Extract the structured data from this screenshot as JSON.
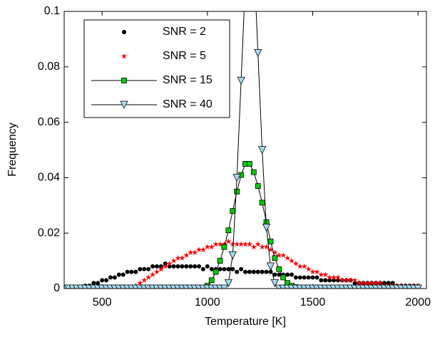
{
  "chart_data": {
    "type": "line",
    "xlabel": "Temperature [K]",
    "ylabel": "Frequency",
    "xlim": [
      320,
      2040
    ],
    "ylim": [
      0,
      0.1
    ],
    "xticks": [
      500,
      1000,
      1500,
      2000
    ],
    "yticks": [
      0,
      0.02,
      0.04,
      0.06,
      0.08,
      0.1
    ],
    "legend": "upper left",
    "x": [
      320,
      340,
      360,
      380,
      400,
      420,
      440,
      460,
      480,
      500,
      520,
      540,
      560,
      580,
      600,
      620,
      640,
      660,
      680,
      700,
      720,
      740,
      760,
      780,
      800,
      820,
      840,
      860,
      880,
      900,
      920,
      940,
      960,
      980,
      1000,
      1020,
      1040,
      1060,
      1080,
      1100,
      1120,
      1140,
      1160,
      1180,
      1200,
      1220,
      1240,
      1260,
      1280,
      1300,
      1320,
      1340,
      1360,
      1380,
      1400,
      1420,
      1440,
      1460,
      1480,
      1500,
      1520,
      1540,
      1560,
      1580,
      1600,
      1620,
      1640,
      1660,
      1680,
      1700,
      1720,
      1740,
      1760,
      1780,
      1800,
      1820,
      1840,
      1860,
      1880,
      1900,
      1920,
      1940,
      1960,
      1980,
      2000
    ],
    "series": [
      {
        "name": "SNR = 2",
        "color": "#000000",
        "marker": "circle",
        "line": false,
        "values": [
          null,
          null,
          null,
          null,
          0.0005,
          0.001,
          0.001,
          0.002,
          0.002,
          0.003,
          0.003,
          0.004,
          0.004,
          0.005,
          0.005,
          0.006,
          0.006,
          0.006,
          0.007,
          0.007,
          0.007,
          0.008,
          0.008,
          0.008,
          0.009,
          0.008,
          0.008,
          0.008,
          0.008,
          0.008,
          0.008,
          0.008,
          0.008,
          0.007,
          0.008,
          0.007,
          0.007,
          0.007,
          0.007,
          0.007,
          0.007,
          0.006,
          0.007,
          0.006,
          0.006,
          0.006,
          0.006,
          0.006,
          0.006,
          0.006,
          0.005,
          0.005,
          0.005,
          0.005,
          0.005,
          0.004,
          0.004,
          0.004,
          0.004,
          0.004,
          0.004,
          0.003,
          0.003,
          0.003,
          0.003,
          0.003,
          0.003,
          0.003,
          0.003,
          0.002,
          0.002,
          0.002,
          0.002,
          0.002,
          0.002,
          0.002,
          0.002,
          0.002,
          0.002,
          0.001,
          0.001,
          0.001,
          0.001,
          0.001,
          0.001
        ]
      },
      {
        "name": "SNR = 5",
        "color": "#ff0000",
        "marker": "star",
        "line": false,
        "values": [
          null,
          null,
          null,
          null,
          null,
          null,
          null,
          null,
          null,
          null,
          null,
          null,
          null,
          null,
          null,
          null,
          null,
          0.001,
          0.002,
          0.003,
          0.004,
          0.005,
          0.006,
          0.007,
          0.008,
          0.009,
          0.01,
          0.011,
          0.011,
          0.012,
          0.013,
          0.013,
          0.014,
          0.014,
          0.015,
          0.015,
          0.016,
          0.016,
          0.016,
          0.017,
          0.016,
          0.016,
          0.016,
          0.016,
          0.016,
          0.015,
          0.016,
          0.015,
          0.015,
          0.014,
          0.013,
          0.012,
          0.012,
          0.011,
          0.01,
          0.009,
          0.008,
          0.008,
          0.007,
          0.006,
          0.006,
          0.005,
          0.005,
          0.004,
          0.004,
          0.004,
          0.003,
          0.003,
          0.003,
          0.003,
          0.002,
          0.002,
          0.002,
          0.002,
          0.002,
          0.002,
          0.001,
          0.001,
          0.001,
          0.001,
          0.001,
          0.001,
          0.001,
          0.001,
          0.001
        ]
      },
      {
        "name": "SNR = 15",
        "color": "#00cc00",
        "marker": "square",
        "line": true,
        "values": [
          null,
          null,
          null,
          null,
          null,
          null,
          null,
          null,
          null,
          null,
          null,
          null,
          null,
          null,
          null,
          null,
          null,
          null,
          null,
          null,
          null,
          null,
          null,
          null,
          null,
          null,
          null,
          null,
          null,
          null,
          null,
          null,
          null,
          0,
          0.001,
          0.003,
          0.006,
          0.01,
          0.015,
          0.021,
          0.028,
          0.035,
          0.041,
          0.045,
          0.045,
          0.042,
          0.037,
          0.031,
          0.024,
          0.017,
          0.011,
          0.007,
          0.004,
          0.002,
          0.001,
          0.0005,
          0,
          0,
          null,
          null,
          null,
          null,
          null,
          null,
          null,
          null,
          null,
          null,
          null,
          null,
          null,
          null,
          null,
          null,
          null,
          null,
          null,
          null,
          null,
          null,
          null,
          null,
          null,
          null,
          null
        ]
      },
      {
        "name": "SNR = 40",
        "color": "#a6dcf0",
        "marker": "triangle-down",
        "line": true,
        "values": [
          0,
          0,
          0,
          0,
          0,
          0,
          0,
          0,
          0,
          0,
          0,
          0,
          0,
          0,
          0,
          0,
          0,
          0,
          0,
          0,
          0,
          0,
          0,
          0,
          0,
          0,
          0,
          0,
          0,
          0,
          0,
          0,
          0,
          0,
          0,
          0,
          0,
          0,
          0,
          0.002,
          0.012,
          0.04,
          0.075,
          0.11,
          0.13,
          0.12,
          0.085,
          0.05,
          0.022,
          0.008,
          0.002,
          0,
          0,
          0,
          0,
          0,
          0,
          0,
          0,
          0,
          0,
          0,
          0,
          0,
          0,
          0,
          0,
          0,
          0,
          0,
          0,
          0,
          0,
          0,
          0,
          0,
          0,
          0,
          0,
          0,
          0,
          0,
          0,
          0,
          0
        ]
      }
    ]
  }
}
